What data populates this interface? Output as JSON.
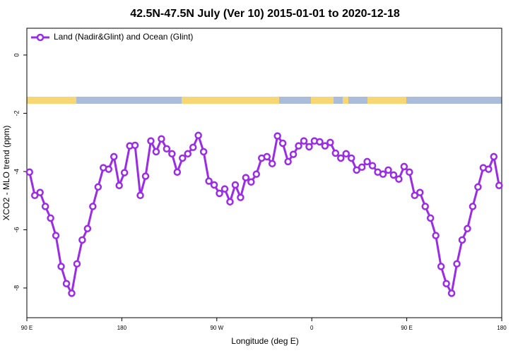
{
  "chart_data": {
    "type": "line",
    "title": "42.5N-47.5N July (Ver 10)   2015-01-01 to 2020-12-18",
    "x_label": "Longitude (deg E)",
    "y_label": "XCO2 - MLO trend (ppm)",
    "legend_position": "top-left",
    "xlim": [
      90,
      540
    ],
    "ylim": [
      -9.02,
      0.92
    ],
    "xticks": [
      {
        "value": 90,
        "label": "90 E"
      },
      {
        "value": 180,
        "label": "180"
      },
      {
        "value": 270,
        "label": "90 W"
      },
      {
        "value": 360,
        "label": "0"
      },
      {
        "value": 450,
        "label": "90 E"
      },
      {
        "value": 540,
        "label": "180"
      }
    ],
    "yticks": [
      0,
      -2,
      -4,
      -6,
      -8
    ],
    "x": [
      92.5,
      97.5,
      102.5,
      107.5,
      112.5,
      117.5,
      122.5,
      127.5,
      132.5,
      137.5,
      142.5,
      147.5,
      152.5,
      157.5,
      162.5,
      167.5,
      172.5,
      177.5,
      182.5,
      187.5,
      192.5,
      197.5,
      202.5,
      207.5,
      212.5,
      217.5,
      222.5,
      227.5,
      232.5,
      237.5,
      242.5,
      247.5,
      252.5,
      257.5,
      262.5,
      267.5,
      272.5,
      277.5,
      282.5,
      287.5,
      292.5,
      297.5,
      302.5,
      307.5,
      312.5,
      317.5,
      322.5,
      327.5,
      332.5,
      337.5,
      342.5,
      347.5,
      352.5,
      357.5,
      362.5,
      367.5,
      372.5,
      377.5,
      382.5,
      387.5,
      392.5,
      397.5,
      402.5,
      407.5,
      412.5,
      417.5,
      422.5,
      427.5,
      432.5,
      437.5,
      442.5,
      447.5,
      452.5,
      457.5,
      462.5,
      467.5,
      472.5,
      477.5,
      482.5,
      487.5,
      492.5,
      497.5,
      502.5,
      507.5,
      512.5,
      517.5,
      522.5,
      527.5,
      532.5,
      537.5
    ],
    "series": [
      {
        "name": "Land (Nadir&Glint) and Ocean (Glint)",
        "color": "#9b2ce6",
        "values": [
          -4.02,
          -4.82,
          -4.72,
          -5.2,
          -5.6,
          -6.2,
          -7.26,
          -7.85,
          -8.18,
          -7.17,
          -6.35,
          -5.96,
          -5.2,
          -4.53,
          -3.87,
          -3.92,
          -3.49,
          -4.48,
          -4.04,
          -3.12,
          -3.1,
          -4.82,
          -4.16,
          -2.95,
          -3.32,
          -2.88,
          -3.22,
          -3.39,
          -4.02,
          -3.54,
          -3.39,
          -3.17,
          -2.76,
          -3.32,
          -4.33,
          -4.46,
          -4.75,
          -4.6,
          -5.04,
          -4.46,
          -4.89,
          -4.21,
          -4.36,
          -4.09,
          -3.54,
          -3.49,
          -3.73,
          -2.78,
          -3.03,
          -3.66,
          -3.41,
          -3.12,
          -2.95,
          -3.15,
          -2.95,
          -2.98,
          -3.12,
          -3.0,
          -3.37,
          -3.54,
          -3.39,
          -3.54,
          -3.95,
          -3.85,
          -3.66,
          -3.8,
          -4.02,
          -4.09,
          -3.95,
          -4.12,
          -4.26,
          -3.83,
          -4.02,
          -4.82,
          -4.72,
          -5.2,
          -5.6,
          -6.2,
          -7.26,
          -7.85,
          -8.18,
          -7.17,
          -6.35,
          -5.96,
          -5.2,
          -4.53,
          -3.87,
          -3.92,
          -3.49,
          -4.48
        ]
      }
    ]
  }
}
